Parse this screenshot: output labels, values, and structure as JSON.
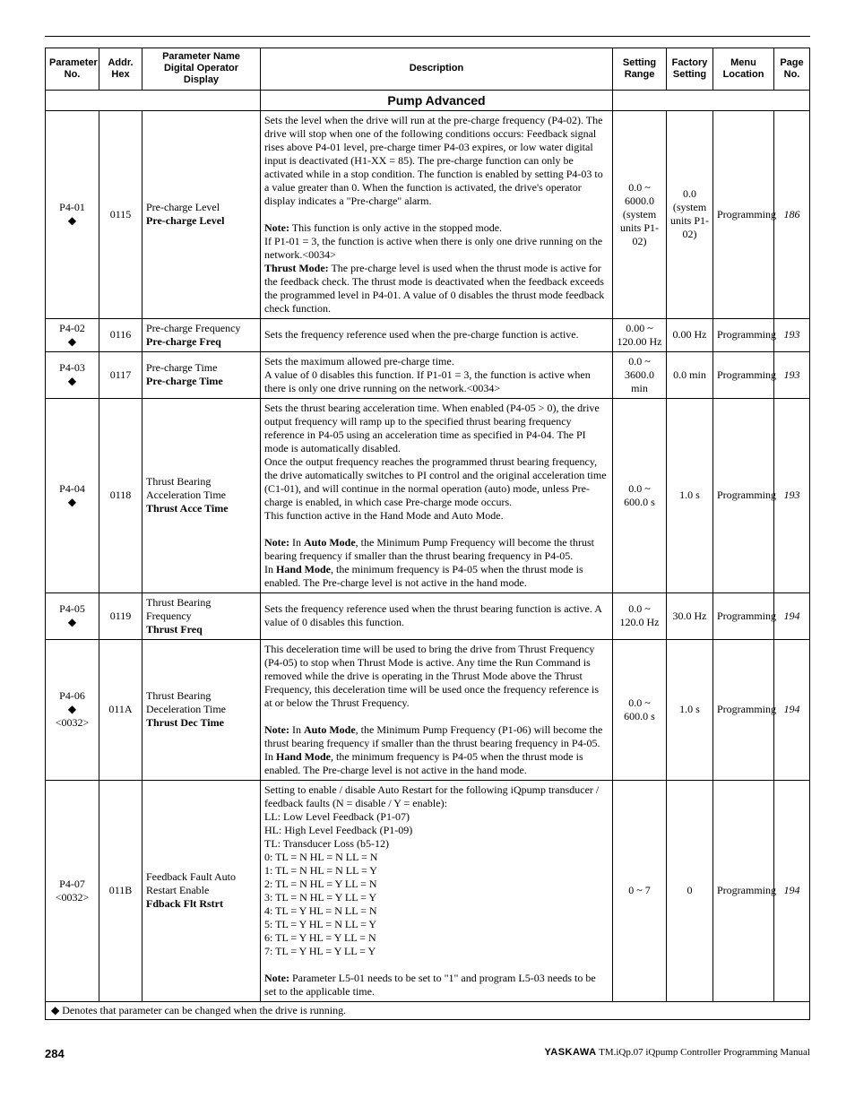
{
  "headers": {
    "param": "Parameter No.",
    "addr": "Addr. Hex",
    "name": "Parameter Name Digital Operator Display",
    "desc": "Description",
    "range": "Setting Range",
    "factory": "Factory Setting",
    "menu": "Menu Location",
    "page": "Page No."
  },
  "section_title": "Pump Advanced",
  "rows": [
    {
      "param": "P4-01",
      "diamond": true,
      "addr": "0115",
      "name_plain": "Pre-charge Level",
      "name_bold": "Pre-charge Level",
      "desc_html": "Sets the level when the drive will run at the pre-charge frequency (P4-02). The drive will stop when one of the following conditions occurs: Feedback signal rises above P4-01 level, pre-charge timer P4-03 expires, or low water digital input is deactivated (H1-XX = 85). The pre-charge function can only be activated while in a stop condition. The function is enabled by setting P4-03 to a value greater than 0. When the function is activated, the drive's operator display indicates a \"Pre-charge\" alarm.<br><br><b>Note:</b> This function is only active in the stopped mode.<br>If P1-01 = 3, the function is active when there is only one drive running on the network.&lt;0034&gt;<br><b>Thrust Mode:</b> The pre-charge level is used when the thrust mode is active for the feedback check. The thrust mode is deactivated when the feedback exceeds the programmed level in P4-01. A value of 0 disables the thrust mode feedback check function.",
      "range": "0.0 ~ 6000.0 (system units P1-02)",
      "factory": "0.0 (system units P1-02)",
      "menu": "Programming",
      "page": "186"
    },
    {
      "param": "P4-02",
      "diamond": true,
      "addr": "0116",
      "name_plain": "Pre-charge Frequency",
      "name_bold": "Pre-charge Freq",
      "desc_html": "Sets the frequency reference used when the pre-charge function is active.",
      "range": "0.00 ~ 120.00 Hz",
      "factory": "0.00 Hz",
      "menu": "Programming",
      "page": "193"
    },
    {
      "param": "P4-03",
      "diamond": true,
      "addr": "0117",
      "name_plain": "Pre-charge Time",
      "name_bold": "Pre-charge Time",
      "desc_html": "Sets the maximum allowed pre-charge time.<br>A value of 0 disables this function. If P1-01 = 3, the function is active when there is only one drive running on the network.&lt;0034&gt;",
      "range": "0.0 ~ 3600.0 min",
      "factory": "0.0 min",
      "menu": "Programming",
      "page": "193"
    },
    {
      "param": "P4-04",
      "diamond": true,
      "addr": "0118",
      "name_plain": "Thrust Bearing Acceleration Time",
      "name_bold": "Thrust Acce Time",
      "desc_html": "Sets the thrust bearing acceleration time. When enabled (P4-05 &gt; 0), the drive output frequency will ramp up to the specified thrust bearing frequency reference in P4-05 using an acceleration time as specified in P4-04. The PI mode is automatically disabled.<br>Once the output frequency reaches the programmed thrust bearing frequency, the drive automatically switches to PI control and the original acceleration time (C1-01), and will continue in the normal operation (auto) mode, unless Pre-charge is enabled, in which case Pre-charge mode occurs.<br>This function active in the Hand Mode and Auto Mode.<br><br><b>Note:</b> In <b>Auto Mode</b>, the Minimum Pump Frequency will become the thrust bearing frequency if smaller than the thrust bearing frequency in P4-05.<br>In <b>Hand Mode</b>, the minimum frequency is P4-05 when the thrust mode is enabled. The Pre-charge level is not active in the hand mode.",
      "range": "0.0 ~ 600.0 s",
      "factory": "1.0 s",
      "menu": "Programming",
      "page": "193"
    },
    {
      "param": "P4-05",
      "diamond": true,
      "addr": "0119",
      "name_plain": "Thrust Bearing Frequency",
      "name_bold": "Thrust Freq",
      "desc_html": "Sets the frequency reference used when the thrust bearing function is active. A value of 0 disables this function.",
      "range": "0.0 ~ 120.0 Hz",
      "factory": "30.0 Hz",
      "menu": "Programming",
      "page": "194"
    },
    {
      "param": "P4-06",
      "diamond": true,
      "extra": "<0032>",
      "addr": "011A",
      "name_plain": "Thrust Bearing Deceleration Time",
      "name_bold": "Thrust Dec Time",
      "desc_html": "This deceleration time will be used to bring the drive from Thrust Frequency (P4-05) to stop when Thrust Mode is active. Any time the Run Command is removed while the drive is operating in the Thrust Mode above the Thrust Frequency, this deceleration time will be used once the frequency reference is at or below the Thrust Frequency.<br><br><b>Note:</b> In <b>Auto Mode</b>, the Minimum Pump Frequency (P1-06) will become the thrust bearing frequency if smaller than the thrust bearing frequency in P4-05.<br>In <b>Hand Mode</b>, the minimum frequency is P4-05 when the thrust mode is enabled. The Pre-charge level is not active in the hand mode.",
      "range": "0.0 ~ 600.0 s",
      "factory": "1.0 s",
      "menu": "Programming",
      "page": "194"
    },
    {
      "param": "P4-07",
      "diamond": false,
      "extra": "<0032>",
      "addr": "011B",
      "name_plain": "Feedback Fault Auto Restart Enable",
      "name_bold": "Fdback Flt Rstrt",
      "desc_html": "Setting to enable / disable Auto Restart for the following iQpump transducer / feedback faults (N = disable / Y = enable):<br>LL: Low Level Feedback (P1-07)<br>HL: High Level Feedback (P1-09)<br>TL: Transducer Loss (b5-12)<br>0: TL = N HL = N LL = N<br>1: TL = N HL = N LL = Y<br>2: TL = N HL = Y LL = N<br>3: TL = N HL = Y LL = Y<br>4: TL = Y HL = N LL = N<br>5: TL = Y HL = N LL = Y<br>6: TL = Y HL = Y LL = N<br>7: TL = Y HL = Y LL = Y<br><br><b>Note:</b> Parameter L5-01 needs to be set to \"1\" and program L5-03 needs to be set to the applicable time.",
      "range": "0 ~ 7",
      "factory": "0",
      "menu": "Programming",
      "page": "194"
    }
  ],
  "footnote": "◆ Denotes that parameter can be changed when the drive is running.",
  "footer": {
    "page": "284",
    "brand": "YASKAWA",
    "doc": "TM.iQp.07 iQpump Controller Programming Manual"
  }
}
